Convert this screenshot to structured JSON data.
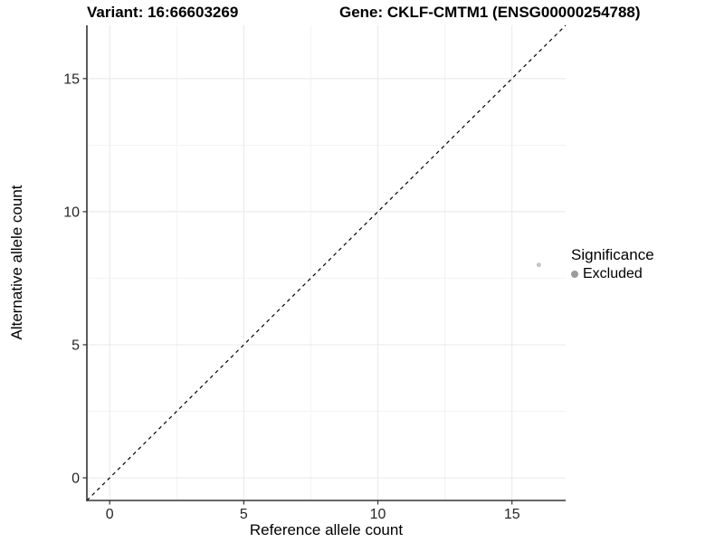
{
  "titles": {
    "variant": "Variant: 16:66603269",
    "gene": "Gene: CKLF-CMTM1 (ENSG00000254788)"
  },
  "legend": {
    "title": "Significance",
    "items": [
      {
        "label": "Excluded",
        "color": "#9b9b9b"
      }
    ]
  },
  "chart_data": {
    "type": "scatter",
    "title": "Variant: 16:66603269   Gene: CKLF-CMTM1 (ENSG00000254788)",
    "xlabel": "Reference allele count",
    "ylabel": "Alternative allele count",
    "xlim": [
      -0.85,
      17
    ],
    "ylim": [
      -0.85,
      17
    ],
    "x_ticks": [
      0,
      5,
      10,
      15
    ],
    "y_ticks": [
      0,
      5,
      10,
      15
    ],
    "x_minor_gridlines": [
      2.5,
      7.5,
      12.5
    ],
    "y_minor_gridlines": [
      2.5,
      7.5,
      12.5
    ],
    "grid": true,
    "legend_position": "right",
    "reference_line": {
      "type": "identity",
      "slope": 1,
      "intercept": 0,
      "style": "dashed",
      "color": "#000000"
    },
    "series": [
      {
        "name": "Excluded",
        "color": "#c4c4c4",
        "point_radius": 2.5,
        "points": [
          {
            "x": 16,
            "y": 8
          }
        ]
      }
    ],
    "colors": {
      "background": "#ffffff",
      "major_grid": "#e8e8e8",
      "minor_grid": "#f3f3f3",
      "axis_line": "#333333",
      "tick_label": "#262626"
    }
  }
}
